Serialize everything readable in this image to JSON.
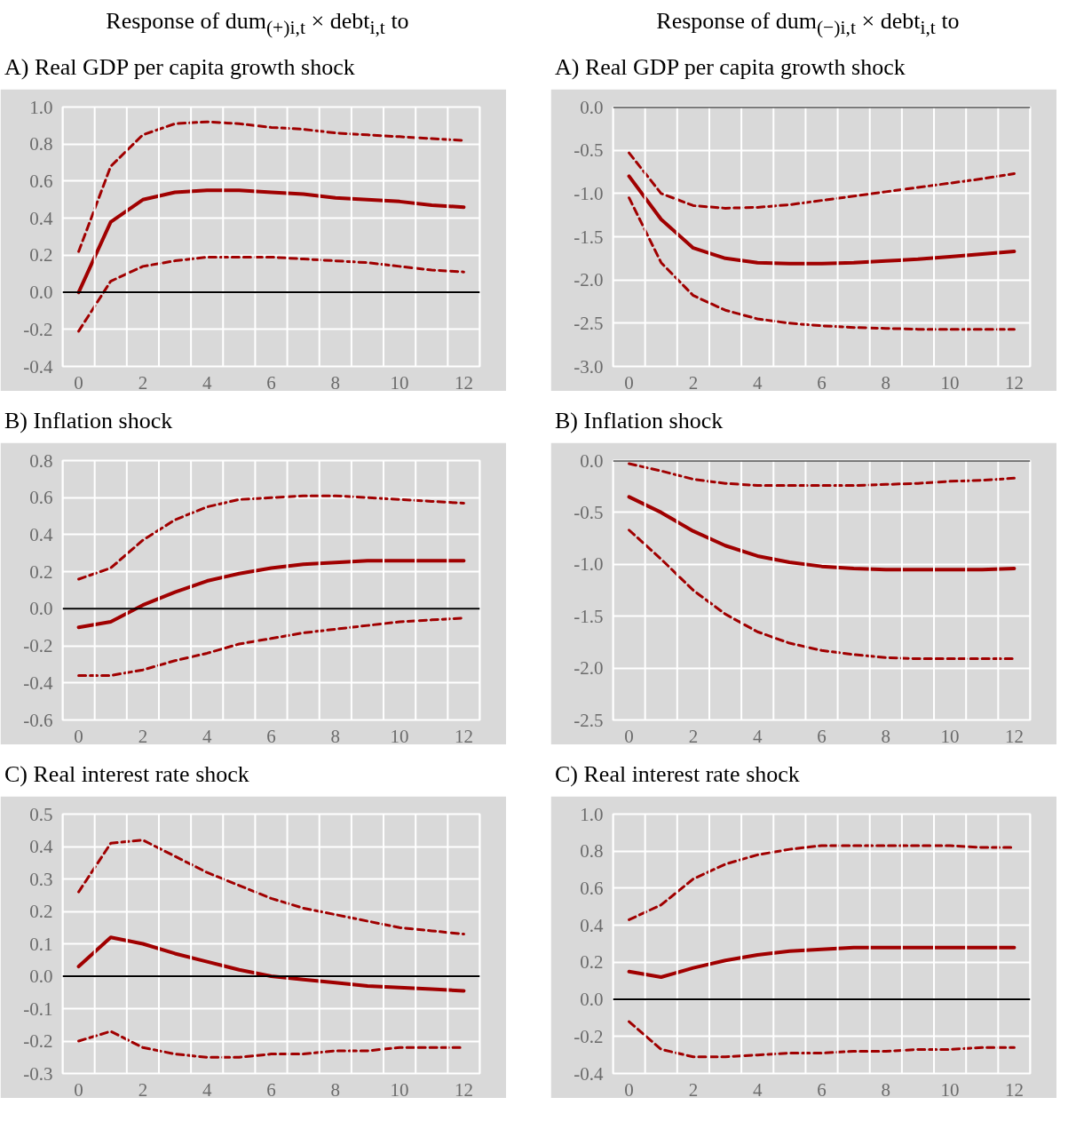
{
  "chart_data": [
    {
      "type": "line",
      "subtitle": "Response of dum$_{(+)i,t}$ × debt$_{i,t}$ to",
      "title": "A) Real GDP per capita growth shock",
      "categories": [
        "0",
        null,
        "2",
        null,
        "4",
        null,
        "6",
        null,
        "8",
        null,
        "10",
        null,
        "12"
      ],
      "ylim": [
        -0.4,
        1.0
      ],
      "yticks": [
        {
          "value": -0.4,
          "label": "-0.4"
        },
        {
          "value": -0.2,
          "label": "-0.2"
        },
        {
          "value": 0,
          "label": "0.0"
        },
        {
          "value": 0.2,
          "label": "0.2"
        },
        {
          "value": 0.4,
          "label": "0.4"
        },
        {
          "value": 0.6,
          "label": "0.6"
        },
        {
          "value": 0.8,
          "label": "0.8"
        },
        {
          "value": 1.0,
          "label": "1.0"
        }
      ],
      "grid": true,
      "ref_lines": [
        {
          "axis": "y",
          "value": 0,
          "color": "#000000"
        }
      ],
      "series": [
        {
          "color": "#a00000",
          "line_style": "solid",
          "values": [
            0.0,
            0.38,
            0.5,
            0.54,
            0.55,
            0.55,
            0.54,
            0.53,
            0.51,
            0.5,
            0.49,
            0.47,
            0.46
          ]
        },
        {
          "color": "#a00000",
          "line_style": "dashed",
          "values": [
            0.22,
            0.68,
            0.85,
            0.91,
            0.92,
            0.91,
            0.89,
            0.88,
            0.86,
            0.85,
            0.84,
            0.83,
            0.82
          ]
        },
        {
          "color": "#a00000",
          "line_style": "dashed",
          "values": [
            -0.21,
            0.06,
            0.14,
            0.17,
            0.19,
            0.19,
            0.19,
            0.18,
            0.17,
            0.16,
            0.14,
            0.12,
            0.11
          ]
        }
      ]
    },
    {
      "type": "line",
      "subtitle": "Response of dum$_{(−)i,t}$ × debt$_{i,t}$ to",
      "title": "A) Real GDP per capita growth shock",
      "categories": [
        "0",
        null,
        "2",
        null,
        "4",
        null,
        "6",
        null,
        "8",
        null,
        "10",
        null,
        "12"
      ],
      "ylim": [
        -3.0,
        0.0
      ],
      "yticks": [
        {
          "value": -3.0,
          "label": "-3.0"
        },
        {
          "value": -2.5,
          "label": "-2.5"
        },
        {
          "value": -2.0,
          "label": "-2.0"
        },
        {
          "value": -1.5,
          "label": "-1.5"
        },
        {
          "value": -1.0,
          "label": "-1.0"
        },
        {
          "value": -0.5,
          "label": "-0.5"
        },
        {
          "value": 0,
          "label": "0.0"
        }
      ],
      "grid": true,
      "ref_lines": [
        {
          "axis": "y",
          "value": 0,
          "color": "#000000"
        }
      ],
      "series": [
        {
          "color": "#a00000",
          "line_style": "solid",
          "values": [
            -0.8,
            -1.3,
            -1.63,
            -1.75,
            -1.8,
            -1.81,
            -1.81,
            -1.8,
            -1.78,
            -1.76,
            -1.73,
            -1.7,
            -1.67
          ]
        },
        {
          "color": "#a00000",
          "line_style": "dashed",
          "values": [
            -0.53,
            -1.0,
            -1.14,
            -1.17,
            -1.16,
            -1.13,
            -1.08,
            -1.03,
            -0.98,
            -0.93,
            -0.88,
            -0.83,
            -0.77
          ]
        },
        {
          "color": "#a00000",
          "line_style": "dashed",
          "values": [
            -1.05,
            -1.8,
            -2.18,
            -2.35,
            -2.45,
            -2.5,
            -2.53,
            -2.55,
            -2.56,
            -2.57,
            -2.57,
            -2.57,
            -2.57
          ]
        }
      ]
    },
    {
      "type": "line",
      "title": "B) Inflation shock",
      "categories": [
        "0",
        null,
        "2",
        null,
        "4",
        null,
        "6",
        null,
        "8",
        null,
        "10",
        null,
        "12"
      ],
      "ylim": [
        -0.6,
        0.8
      ],
      "yticks": [
        {
          "value": -0.6,
          "label": "-0.6"
        },
        {
          "value": -0.4,
          "label": "-0.4"
        },
        {
          "value": -0.2,
          "label": "-0.2"
        },
        {
          "value": 0,
          "label": "0.0"
        },
        {
          "value": 0.2,
          "label": "0.2"
        },
        {
          "value": 0.4,
          "label": "0.4"
        },
        {
          "value": 0.6,
          "label": "0.6"
        },
        {
          "value": 0.8,
          "label": "0.8"
        }
      ],
      "grid": true,
      "ref_lines": [
        {
          "axis": "y",
          "value": 0,
          "color": "#000000"
        }
      ],
      "series": [
        {
          "color": "#a00000",
          "line_style": "solid",
          "values": [
            -0.1,
            -0.07,
            0.02,
            0.09,
            0.15,
            0.19,
            0.22,
            0.24,
            0.25,
            0.26,
            0.26,
            0.26,
            0.26
          ]
        },
        {
          "color": "#a00000",
          "line_style": "dashed",
          "values": [
            0.16,
            0.22,
            0.37,
            0.48,
            0.55,
            0.59,
            0.6,
            0.61,
            0.61,
            0.6,
            0.59,
            0.58,
            0.57
          ]
        },
        {
          "color": "#a00000",
          "line_style": "dashed",
          "values": [
            -0.36,
            -0.36,
            -0.33,
            -0.28,
            -0.24,
            -0.19,
            -0.16,
            -0.13,
            -0.11,
            -0.09,
            -0.07,
            -0.06,
            -0.05
          ]
        }
      ]
    },
    {
      "type": "line",
      "title": "B) Inflation shock",
      "categories": [
        "0",
        null,
        "2",
        null,
        "4",
        null,
        "6",
        null,
        "8",
        null,
        "10",
        null,
        "12"
      ],
      "ylim": [
        -2.5,
        0.0
      ],
      "yticks": [
        {
          "value": -2.5,
          "label": "-2.5"
        },
        {
          "value": -2.0,
          "label": "-2.0"
        },
        {
          "value": -1.5,
          "label": "-1.5"
        },
        {
          "value": -1.0,
          "label": "-1.0"
        },
        {
          "value": -0.5,
          "label": "-0.5"
        },
        {
          "value": 0,
          "label": "0.0"
        }
      ],
      "grid": true,
      "ref_lines": [
        {
          "axis": "y",
          "value": 0,
          "color": "#000000"
        }
      ],
      "series": [
        {
          "color": "#a00000",
          "line_style": "solid",
          "values": [
            -0.35,
            -0.5,
            -0.68,
            -0.82,
            -0.92,
            -0.98,
            -1.02,
            -1.04,
            -1.05,
            -1.05,
            -1.05,
            -1.05,
            -1.04
          ]
        },
        {
          "color": "#a00000",
          "line_style": "dashed",
          "values": [
            -0.03,
            -0.1,
            -0.18,
            -0.22,
            -0.24,
            -0.24,
            -0.24,
            -0.24,
            -0.23,
            -0.22,
            -0.2,
            -0.19,
            -0.17
          ]
        },
        {
          "color": "#a00000",
          "line_style": "dashed",
          "values": [
            -0.67,
            -0.95,
            -1.25,
            -1.48,
            -1.65,
            -1.76,
            -1.83,
            -1.87,
            -1.9,
            -1.91,
            -1.91,
            -1.91,
            -1.91
          ]
        }
      ]
    },
    {
      "type": "line",
      "title": "C) Real interest rate shock",
      "categories": [
        "0",
        null,
        "2",
        null,
        "4",
        null,
        "6",
        null,
        "8",
        null,
        "10",
        null,
        "12"
      ],
      "ylim": [
        -0.3,
        0.5
      ],
      "yticks": [
        {
          "value": -0.3,
          "label": "-0.3"
        },
        {
          "value": -0.2,
          "label": "-0.2"
        },
        {
          "value": -0.1,
          "label": "-0.1"
        },
        {
          "value": 0,
          "label": "0.0"
        },
        {
          "value": 0.1,
          "label": "0.1"
        },
        {
          "value": 0.2,
          "label": "0.2"
        },
        {
          "value": 0.3,
          "label": "0.3"
        },
        {
          "value": 0.4,
          "label": "0.4"
        },
        {
          "value": 0.5,
          "label": "0.5"
        }
      ],
      "grid": true,
      "ref_lines": [
        {
          "axis": "y",
          "value": 0,
          "color": "#000000"
        }
      ],
      "series": [
        {
          "color": "#a00000",
          "line_style": "solid",
          "values": [
            0.03,
            0.12,
            0.1,
            0.07,
            0.045,
            0.02,
            0.0,
            -0.01,
            -0.02,
            -0.03,
            -0.035,
            -0.04,
            -0.045
          ]
        },
        {
          "color": "#a00000",
          "line_style": "dashed",
          "values": [
            0.26,
            0.41,
            0.42,
            0.37,
            0.32,
            0.28,
            0.24,
            0.21,
            0.19,
            0.17,
            0.15,
            0.14,
            0.13
          ]
        },
        {
          "color": "#a00000",
          "line_style": "dashed",
          "values": [
            -0.2,
            -0.17,
            -0.22,
            -0.24,
            -0.25,
            -0.25,
            -0.24,
            -0.24,
            -0.23,
            -0.23,
            -0.22,
            -0.22,
            -0.22
          ]
        }
      ]
    },
    {
      "type": "line",
      "title": "C) Real interest rate shock",
      "categories": [
        "0",
        null,
        "2",
        null,
        "4",
        null,
        "6",
        null,
        "8",
        null,
        "10",
        null,
        "12"
      ],
      "ylim": [
        -0.4,
        1.0
      ],
      "yticks": [
        {
          "value": -0.4,
          "label": "-0.4"
        },
        {
          "value": -0.2,
          "label": "-0.2"
        },
        {
          "value": 0,
          "label": "0.0"
        },
        {
          "value": 0.2,
          "label": "0.2"
        },
        {
          "value": 0.4,
          "label": "0.4"
        },
        {
          "value": 0.6,
          "label": "0.6"
        },
        {
          "value": 0.8,
          "label": "0.8"
        },
        {
          "value": 1.0,
          "label": "1.0"
        }
      ],
      "grid": true,
      "ref_lines": [
        {
          "axis": "y",
          "value": 0,
          "color": "#000000"
        }
      ],
      "series": [
        {
          "color": "#a00000",
          "line_style": "solid",
          "values": [
            0.15,
            0.12,
            0.17,
            0.21,
            0.24,
            0.26,
            0.27,
            0.28,
            0.28,
            0.28,
            0.28,
            0.28,
            0.28
          ]
        },
        {
          "color": "#a00000",
          "line_style": "dashed",
          "values": [
            0.43,
            0.51,
            0.65,
            0.73,
            0.78,
            0.81,
            0.83,
            0.83,
            0.83,
            0.83,
            0.83,
            0.82,
            0.82
          ]
        },
        {
          "color": "#a00000",
          "line_style": "dashed",
          "values": [
            -0.12,
            -0.27,
            -0.31,
            -0.31,
            -0.3,
            -0.29,
            -0.29,
            -0.28,
            -0.28,
            -0.27,
            -0.27,
            -0.26,
            -0.26
          ]
        }
      ]
    }
  ]
}
